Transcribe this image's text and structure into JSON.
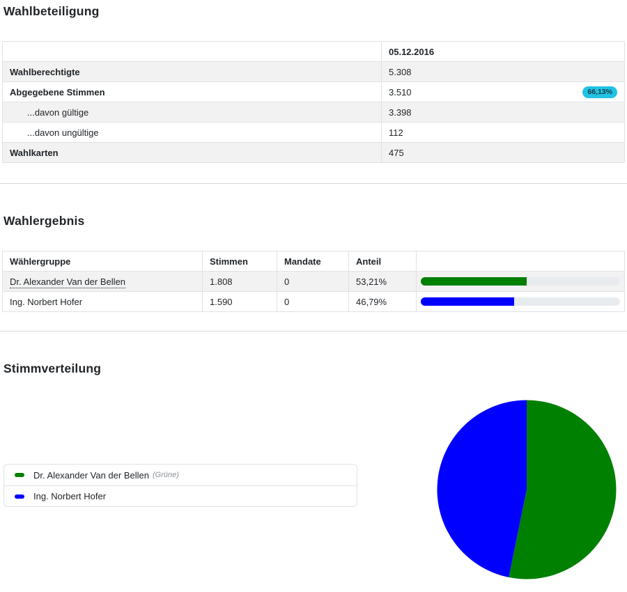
{
  "turnout": {
    "title": "Wahlbeteiligung",
    "date_header": "05.12.2016",
    "badge_color": "#20c3e4",
    "rows": [
      {
        "label": "Wahlberechtigte",
        "value": "5.308",
        "bold": true,
        "indent": false,
        "badge": null
      },
      {
        "label": "Abgegebene Stimmen",
        "value": "3.510",
        "bold": true,
        "indent": false,
        "badge": "66,13%"
      },
      {
        "label": "...davon gültige",
        "value": "3.398",
        "bold": false,
        "indent": true,
        "badge": null
      },
      {
        "label": "...davon ungültige",
        "value": "112",
        "bold": false,
        "indent": true,
        "badge": null
      },
      {
        "label": "Wahlkarten",
        "value": "475",
        "bold": true,
        "indent": false,
        "badge": null
      }
    ]
  },
  "results": {
    "title": "Wahlergebnis",
    "columns": [
      "Wählergruppe",
      "Stimmen",
      "Mandate",
      "Anteil",
      ""
    ],
    "bar_track_color": "#e9ecef",
    "rows": [
      {
        "group": "Dr. Alexander Van der Bellen",
        "votes": "1.808",
        "mandates": "0",
        "share": "53,21%",
        "share_pct": 53.21,
        "color": "#008000",
        "underlined": true
      },
      {
        "group": "Ing. Norbert Hofer",
        "votes": "1.590",
        "mandates": "0",
        "share": "46,79%",
        "share_pct": 46.79,
        "color": "#0000ff",
        "underlined": false
      }
    ]
  },
  "distribution": {
    "title": "Stimmverteilung",
    "legend": [
      {
        "label": "Dr. Alexander Van der Bellen",
        "suffix": "(Grüne)",
        "color": "#008000"
      },
      {
        "label": "Ing. Norbert Hofer",
        "suffix": "",
        "color": "#0000ff"
      }
    ]
  },
  "chart_data": {
    "type": "pie",
    "title": "Stimmverteilung",
    "labels": [
      "Dr. Alexander Van der Bellen",
      "Ing. Norbert Hofer"
    ],
    "values": [
      53.21,
      46.79
    ],
    "colors": [
      "#008000",
      "#0000ff"
    ],
    "start_angle": "top",
    "direction": "clockwise",
    "legend_position": "left"
  }
}
